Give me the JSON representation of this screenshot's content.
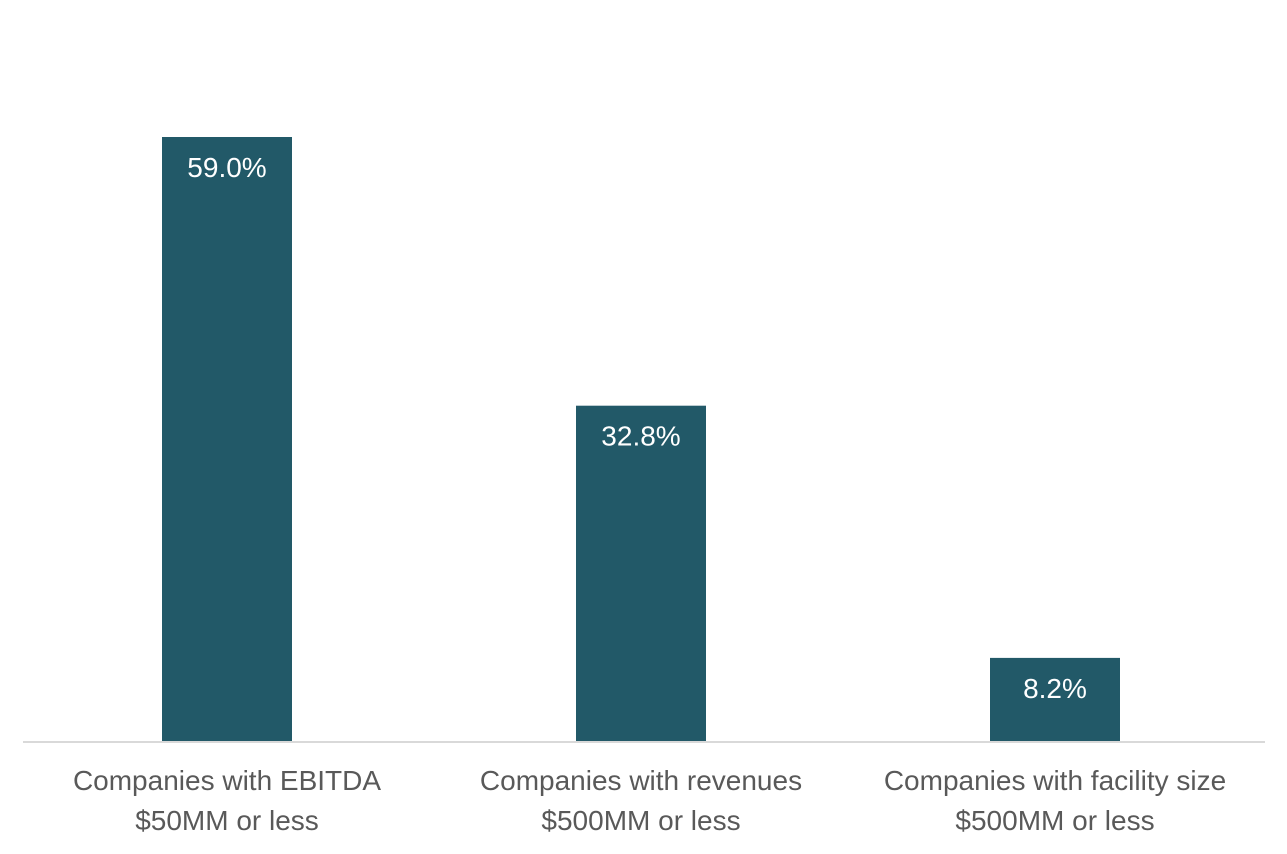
{
  "chart_data": {
    "type": "bar",
    "categories": [
      [
        "Companies with EBITDA",
        "$50MM or less"
      ],
      [
        "Companies with revenues",
        "$500MM or less"
      ],
      [
        "Companies with facility size",
        "$500MM or less"
      ]
    ],
    "values": [
      59.0,
      32.8,
      8.2
    ],
    "data_labels": [
      "59.0%",
      "32.8%",
      "8.2%"
    ],
    "unit": "%",
    "ylim": [
      0,
      70
    ],
    "grid": false,
    "legend": "none",
    "title": "",
    "xlabel": "",
    "ylabel": "",
    "colors": {
      "bar": "#225968",
      "axis": "#d9d9d9",
      "label_text": "#595959",
      "value_text": "#ffffff"
    }
  }
}
